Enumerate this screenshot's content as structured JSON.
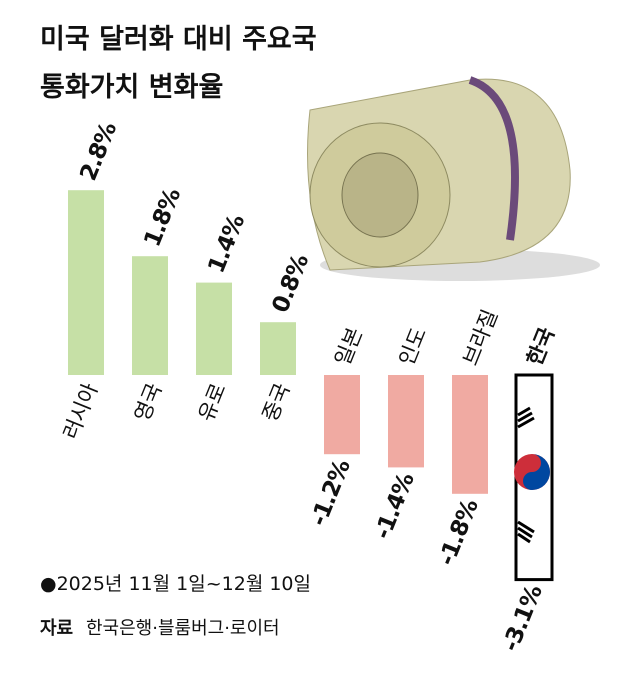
{
  "chart_data": {
    "type": "bar",
    "title": [
      "미국 달러화 대비 주요국",
      "통화가치 변화율"
    ],
    "categories": [
      "러시아",
      "영국",
      "유로",
      "중국",
      "일본",
      "인도",
      "브라질",
      "한국"
    ],
    "values": [
      2.8,
      1.8,
      1.4,
      0.8,
      -1.2,
      -1.4,
      -1.8,
      -3.1
    ],
    "value_labels": [
      "2.8%",
      "1.8%",
      "1.4%",
      "0.8%",
      "-1.2%",
      "-1.4%",
      "-1.8%",
      "-3.1%"
    ],
    "colors": [
      "#c6e0a6",
      "#c6e0a6",
      "#c6e0a6",
      "#c6e0a6",
      "#f0aaa2",
      "#f0aaa2",
      "#f0aaa2",
      "#ffffff"
    ],
    "note": "●2025년 11월 1일~12월 10일",
    "source_label": "자료",
    "source": "한국은행·블룸버그·로이터"
  }
}
